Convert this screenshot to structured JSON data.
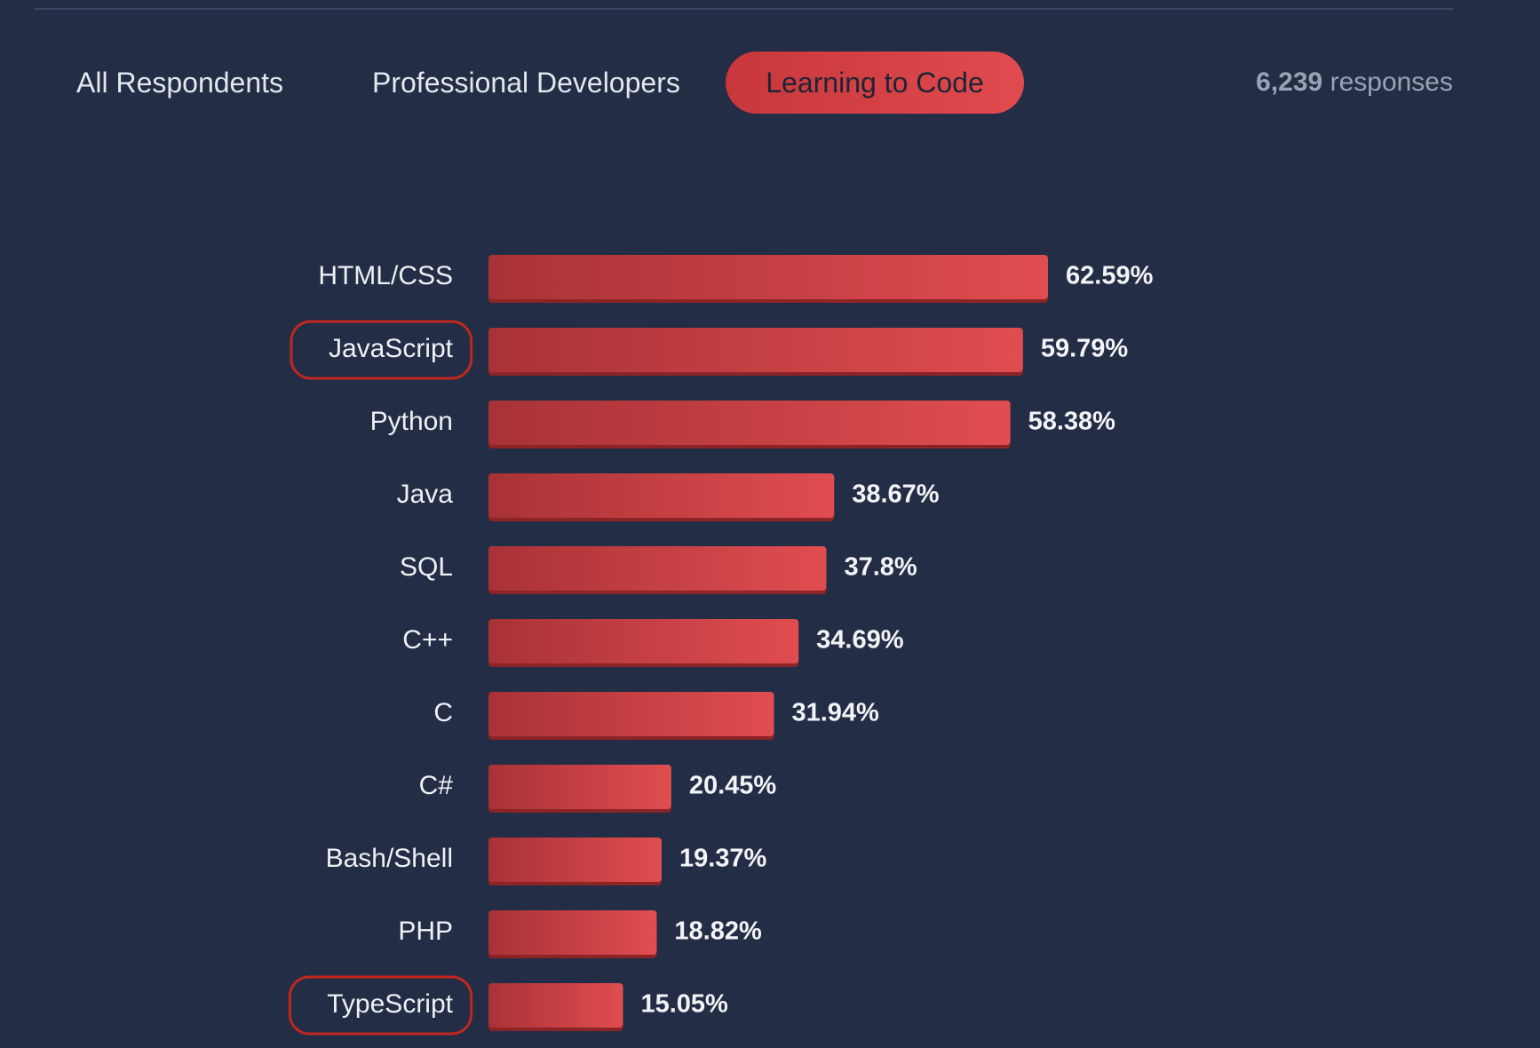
{
  "tabs": [
    {
      "label": "All Respondents",
      "active": false
    },
    {
      "label": "Professional Developers",
      "active": false
    },
    {
      "label": "Learning to Code",
      "active": true
    }
  ],
  "responses": {
    "count": "6,239",
    "label": "responses"
  },
  "colors": {
    "background": "#232d45",
    "bar_start": "#a83236",
    "bar_end": "#e04d50",
    "bar_shadow": "#8c2427",
    "highlight_ring": "#c0281f"
  },
  "chart_data": {
    "type": "bar",
    "orientation": "horizontal",
    "unit": "%",
    "categories": [
      "HTML/CSS",
      "JavaScript",
      "Python",
      "Java",
      "SQL",
      "C++",
      "C",
      "C#",
      "Bash/Shell",
      "PHP",
      "TypeScript"
    ],
    "values": [
      62.59,
      59.79,
      58.38,
      38.67,
      37.8,
      34.69,
      31.94,
      20.45,
      19.37,
      18.82,
      15.05
    ],
    "value_labels": [
      "62.59%",
      "59.79%",
      "58.38%",
      "38.67%",
      "37.8%",
      "34.69%",
      "31.94%",
      "20.45%",
      "19.37%",
      "18.82%",
      "15.05%"
    ],
    "highlighted": [
      "JavaScript",
      "TypeScript"
    ],
    "grid": false,
    "legend": "none"
  }
}
